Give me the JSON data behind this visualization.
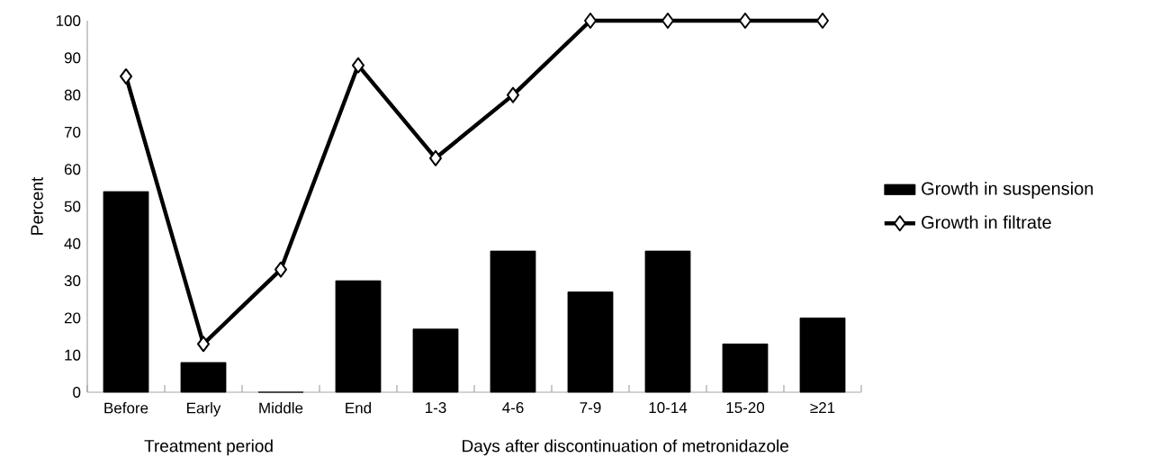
{
  "chart_data": {
    "type": "bar",
    "ylabel": "Percent",
    "categories": [
      "Before",
      "Early",
      "Middle",
      "End",
      "1-3",
      "4-6",
      "7-9",
      "10-14",
      "15-20",
      "≥21"
    ],
    "series": [
      {
        "name": "Growth in suspension",
        "color": "#000000",
        "values": [
          54,
          8,
          0,
          30,
          17,
          38,
          27,
          38,
          13,
          20
        ]
      },
      {
        "name": "Growth in filtrate",
        "type": "line",
        "color": "#000000",
        "marker": "diamond",
        "values": [
          85,
          13,
          33,
          88,
          63,
          80,
          100,
          100,
          100,
          100
        ]
      }
    ],
    "ylim": [
      0,
      100
    ],
    "yticks": [
      0,
      10,
      20,
      30,
      40,
      50,
      60,
      70,
      80,
      90,
      100
    ],
    "legend": "right",
    "annotations": [
      "Treatment period",
      "Days after discontinuation of metronidazole"
    ]
  }
}
